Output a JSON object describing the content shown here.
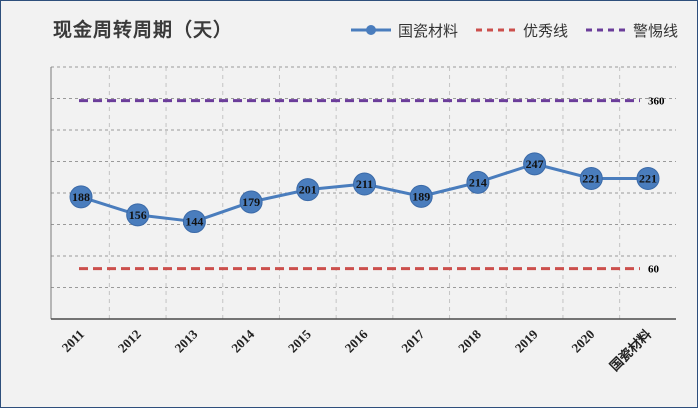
{
  "chart_data": {
    "type": "line",
    "title": "现金周转周期（天）",
    "categories": [
      "2011",
      "2012",
      "2013",
      "2014",
      "2015",
      "2016",
      "2017",
      "2018",
      "2019",
      "2020",
      "国瓷材料"
    ],
    "series": [
      {
        "name": "国瓷材料",
        "values": [
          188,
          156,
          144,
          179,
          201,
          211,
          189,
          214,
          247,
          221,
          221
        ],
        "color": "#4a7dbd",
        "style": "solid-with-markers"
      },
      {
        "name": "优秀线",
        "values": [
          60,
          60,
          60,
          60,
          60,
          60,
          60,
          60,
          60,
          60,
          60
        ],
        "color": "#cc4f4c",
        "style": "dashed",
        "end_label": "60"
      },
      {
        "name": "警惕线",
        "values": [
          360,
          360,
          360,
          360,
          360,
          360,
          360,
          360,
          360,
          360,
          360
        ],
        "color": "#6b3d9a",
        "style": "dashed",
        "end_label": "360"
      }
    ],
    "ylim": [
      -30,
      420
    ],
    "grid": "horizontal-dashed-and-vertical-dashed",
    "legend_position": "top-right",
    "xlabel": "",
    "ylabel": ""
  }
}
